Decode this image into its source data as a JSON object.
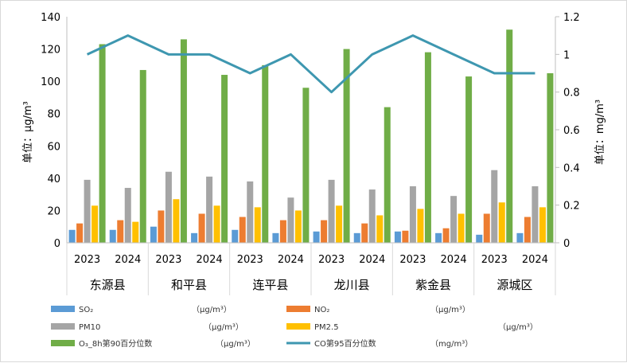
{
  "chart_data": {
    "type": "bar",
    "title": "",
    "ylabel": "单位：μg/m³",
    "y2label": "单位：mg/m³",
    "ylim": [
      0,
      140
    ],
    "y2lim": [
      0,
      1.2
    ],
    "yticks": [
      "0",
      "20",
      "40",
      "60",
      "80",
      "100",
      "120",
      "140"
    ],
    "y2ticks": [
      "0",
      "0.2",
      "0.4",
      "0.6",
      "0.8",
      "1",
      "1.2"
    ],
    "groups": [
      "东源县",
      "和平县",
      "连平县",
      "龙川县",
      "紫金县",
      "源城区"
    ],
    "years": [
      "2023",
      "2024"
    ],
    "grid": false,
    "legend_position": "bottom",
    "series": [
      {
        "name": "SO₂",
        "unit": "（μg/m³）",
        "color": "#5b9bd5",
        "type": "bar",
        "values": [
          8,
          8,
          10,
          6,
          8,
          6,
          7,
          6,
          7,
          6,
          5,
          6
        ]
      },
      {
        "name": "NO₂",
        "unit": "（μg/m³）",
        "color": "#ed7d31",
        "type": "bar",
        "values": [
          12,
          14,
          20,
          18,
          16,
          14,
          14,
          12,
          7.5,
          9,
          18,
          16
        ]
      },
      {
        "name": "PM10",
        "unit": "（μg/m³）",
        "color": "#a5a5a5",
        "type": "bar",
        "values": [
          39,
          34,
          44,
          41,
          38,
          28,
          39,
          33,
          35,
          29,
          45,
          35
        ]
      },
      {
        "name": "PM2.5",
        "unit": "（μg/m³）",
        "color": "#ffc000",
        "type": "bar",
        "values": [
          23,
          13,
          27,
          23,
          22,
          20,
          23,
          17,
          21,
          18,
          25,
          22
        ]
      },
      {
        "name": "O₃_8h第90百分位数",
        "unit": "（μg/m³）",
        "color": "#70ad47",
        "type": "bar",
        "values": [
          123,
          107,
          126,
          104,
          110,
          96,
          120,
          84,
          118,
          103,
          132,
          105
        ]
      },
      {
        "name": "CO第95百分位数",
        "unit": "（mg/m³）",
        "color": "#3e97b0",
        "type": "line",
        "axis": "right",
        "values": [
          1.0,
          1.1,
          1.0,
          1.0,
          0.9,
          1.0,
          0.8,
          1.0,
          1.1,
          1.0,
          0.9,
          0.9
        ]
      }
    ]
  }
}
